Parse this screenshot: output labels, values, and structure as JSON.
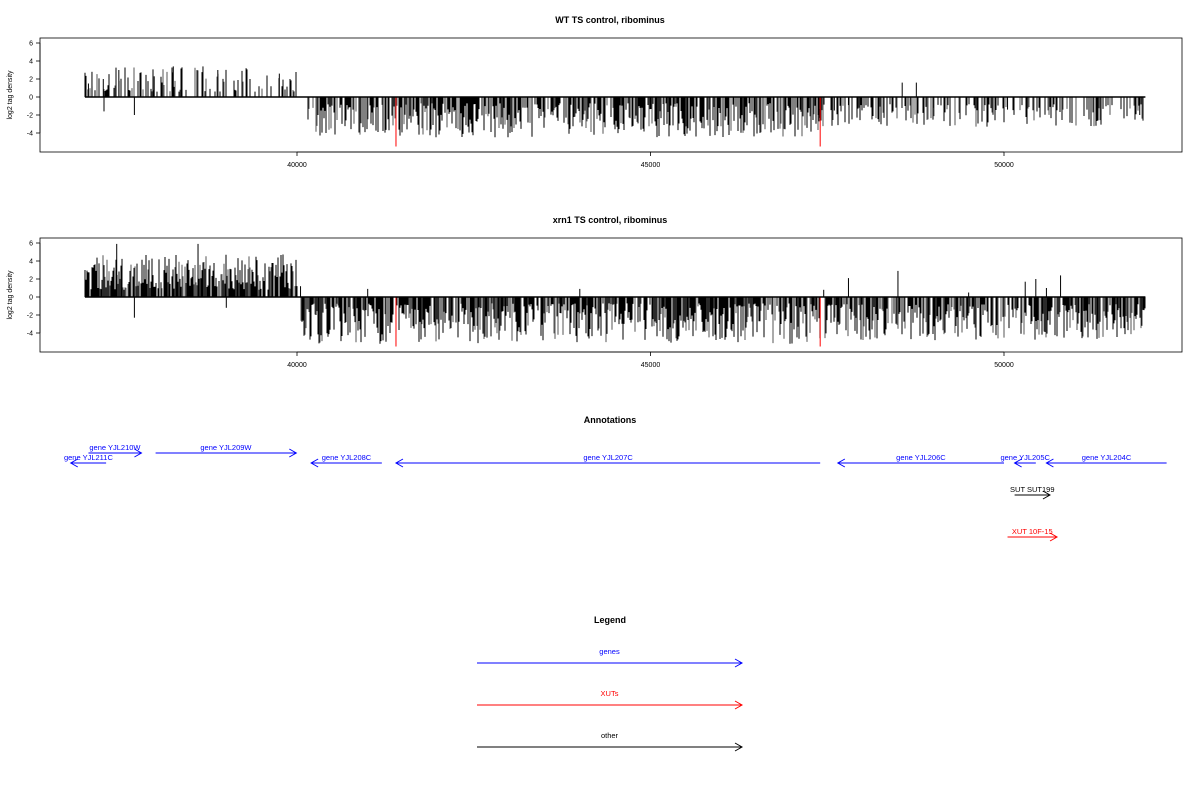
{
  "chart_data": [
    {
      "type": "bar",
      "title": "WT TS control, ribominus",
      "ylabel": "log2 tag density",
      "xlim": [
        36800,
        52300
      ],
      "ylim": [
        -5.8,
        6.5
      ],
      "x_ticks": [
        40000,
        45000,
        50000
      ],
      "y_ticks": [
        6,
        4,
        2,
        0,
        -2,
        -4
      ],
      "grid": false,
      "series": [
        {
          "name": "",
          "color": "#000000",
          "profile": [
            {
              "x0": 37000,
              "x1": 40000,
              "min": 0.6,
              "max": 3.3,
              "prob": 0.45
            },
            {
              "x0": 40150,
              "x1": 41400,
              "min": -4.3,
              "max": -0.8,
              "prob": 0.7
            },
            {
              "x0": 41400,
              "x1": 47400,
              "min": -4.5,
              "max": -0.7,
              "prob": 0.75
            },
            {
              "x0": 47400,
              "x1": 52000,
              "min": -3.3,
              "max": -0.8,
              "prob": 0.4
            }
          ],
          "values": [
            {
              "x": 37050,
              "y": 1.5
            },
            {
              "x": 37100,
              "y": 2.8
            },
            {
              "x": 37260,
              "y": 2.0
            },
            {
              "x": 37270,
              "y": -1.6
            },
            {
              "x": 37480,
              "y": 3.0
            },
            {
              "x": 37700,
              "y": -2.0
            },
            {
              "x": 37980,
              "y": 2.3
            },
            {
              "x": 38250,
              "y": 3.4
            },
            {
              "x": 38670,
              "y": 3.4
            },
            {
              "x": 38880,
              "y": 3.0
            },
            {
              "x": 39280,
              "y": 3.2
            },
            {
              "x": 39750,
              "y": 2.6
            },
            {
              "x": 47370,
              "y": -2.0
            },
            {
              "x": 47600,
              "y": -1.5
            },
            {
              "x": 47800,
              "y": -0.9
            },
            {
              "x": 48560,
              "y": 1.6
            },
            {
              "x": 48600,
              "y": -1.0
            },
            {
              "x": 48760,
              "y": 1.6
            },
            {
              "x": 49000,
              "y": -1.2
            },
            {
              "x": 50050,
              "y": -1.4
            },
            {
              "x": 51920,
              "y": -2.0
            }
          ]
        },
        {
          "name": "",
          "color": "#ff0000",
          "values": [
            {
              "x": 41400,
              "y": -5.5
            },
            {
              "x": 47400,
              "y": -5.5
            }
          ]
        }
      ]
    },
    {
      "type": "bar",
      "title": "xrn1 TS control, ribominus",
      "ylabel": "log2 tag density",
      "xlim": [
        36800,
        52300
      ],
      "ylim": [
        -5.8,
        6.5
      ],
      "x_ticks": [
        40000,
        45000,
        50000
      ],
      "y_ticks": [
        6,
        4,
        2,
        0,
        -2,
        -4
      ],
      "grid": false,
      "series": [
        {
          "name": "",
          "color": "#000000",
          "profile": [
            {
              "x0": 37000,
              "x1": 40000,
              "min": 0.8,
              "max": 4.8,
              "prob": 0.85
            },
            {
              "x0": 40050,
              "x1": 47400,
              "min": -5.2,
              "max": -0.7,
              "prob": 0.85
            },
            {
              "x0": 47450,
              "x1": 52000,
              "min": -4.8,
              "max": -0.8,
              "prob": 0.8
            }
          ],
          "values": [
            {
              "x": 37450,
              "y": 5.9
            },
            {
              "x": 37700,
              "y": -2.3
            },
            {
              "x": 38600,
              "y": 5.9
            },
            {
              "x": 39000,
              "y": -1.2
            },
            {
              "x": 40050,
              "y": 1.2
            },
            {
              "x": 41000,
              "y": 0.9
            },
            {
              "x": 44000,
              "y": 0.9
            },
            {
              "x": 47450,
              "y": 0.8
            },
            {
              "x": 47800,
              "y": 2.1
            },
            {
              "x": 48500,
              "y": 2.9
            },
            {
              "x": 49500,
              "y": 0.5
            },
            {
              "x": 50300,
              "y": 1.7
            },
            {
              "x": 50450,
              "y": 2.0
            },
            {
              "x": 50600,
              "y": 1.0
            },
            {
              "x": 50800,
              "y": 2.4
            },
            {
              "x": 51950,
              "y": -3.2
            }
          ]
        },
        {
          "name": "",
          "color": "#ff0000",
          "values": [
            {
              "x": 41400,
              "y": -5.5
            },
            {
              "x": 47400,
              "y": -5.5
            }
          ]
        }
      ]
    }
  ],
  "annotations": {
    "title": "Annotations",
    "features": [
      {
        "label": "gene YJL211C",
        "start": 37300,
        "end": 36800,
        "color": "#0000ff",
        "row": 1
      },
      {
        "label": "gene YJL210W",
        "start": 37050,
        "end": 37800,
        "color": "#0000ff",
        "row": 0
      },
      {
        "label": "gene YJL209W",
        "start": 38000,
        "end": 39990,
        "color": "#0000ff",
        "row": 0
      },
      {
        "label": "gene YJL208C",
        "start": 41200,
        "end": 40200,
        "color": "#0000ff",
        "row": 1
      },
      {
        "label": "gene YJL207C",
        "start": 47400,
        "end": 41400,
        "color": "#0000ff",
        "row": 1
      },
      {
        "label": "gene YJL206C",
        "start": 50000,
        "end": 47650,
        "color": "#0000ff",
        "row": 1
      },
      {
        "label": "gene YJL205C",
        "start": 50450,
        "end": 50150,
        "color": "#0000ff",
        "row": 1
      },
      {
        "label": "gene YJL204C",
        "start": 52300,
        "end": 50600,
        "color": "#0000ff",
        "row": 1
      },
      {
        "label": "SUT SUT199",
        "start": 50150,
        "end": 50650,
        "color": "#000000",
        "row": 2
      },
      {
        "label": "XUT 10F-15",
        "start": 50050,
        "end": 50750,
        "color": "#ff0000",
        "row": 3
      }
    ]
  },
  "legend": {
    "title": "Legend",
    "items": [
      {
        "label": "genes",
        "color": "#0000ff"
      },
      {
        "label": "XUTs",
        "color": "#ff0000"
      },
      {
        "label": "other",
        "color": "#000000"
      }
    ]
  }
}
